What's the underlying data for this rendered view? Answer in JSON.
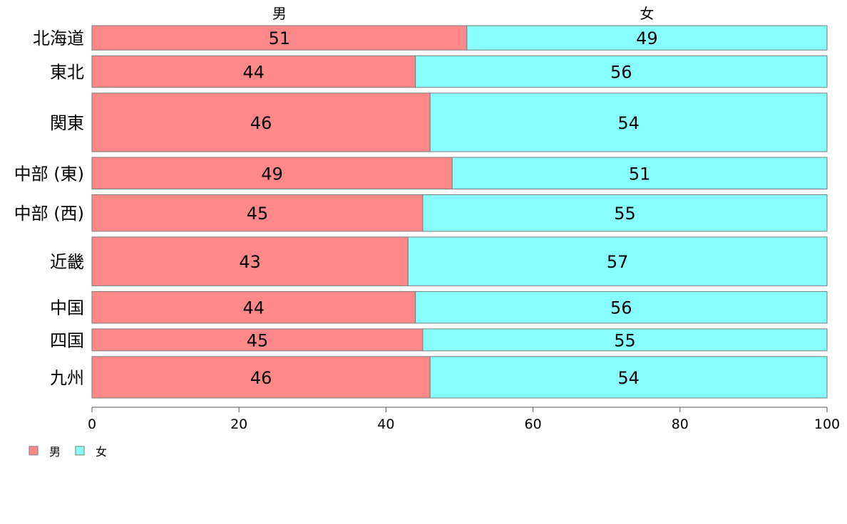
{
  "chart_data": {
    "type": "bar",
    "orientation": "horizontal",
    "stacked": true,
    "categories": [
      "北海道",
      "東北",
      "関東",
      "中部 (東)",
      "中部 (西)",
      "近畿",
      "中国",
      "四国",
      "九州"
    ],
    "relative_widths": [
      1.0,
      1.3,
      2.4,
      1.3,
      1.5,
      2.0,
      1.3,
      0.9,
      1.7
    ],
    "series": [
      {
        "name": "男",
        "color": "#ff8888",
        "values": [
          51,
          44,
          46,
          49,
          45,
          43,
          44,
          45,
          46
        ]
      },
      {
        "name": "女",
        "color": "#88ffff",
        "values": [
          49,
          56,
          54,
          51,
          55,
          57,
          56,
          55,
          54
        ]
      }
    ],
    "column_headers": [
      "男",
      "女"
    ],
    "xlim": [
      0,
      100
    ],
    "xticks": [
      0,
      20,
      40,
      60,
      80,
      100
    ],
    "grid": false,
    "legend": {
      "position": "bottom-left",
      "entries": [
        "男",
        "女"
      ]
    },
    "xlabel": "",
    "ylabel": "",
    "title": ""
  }
}
